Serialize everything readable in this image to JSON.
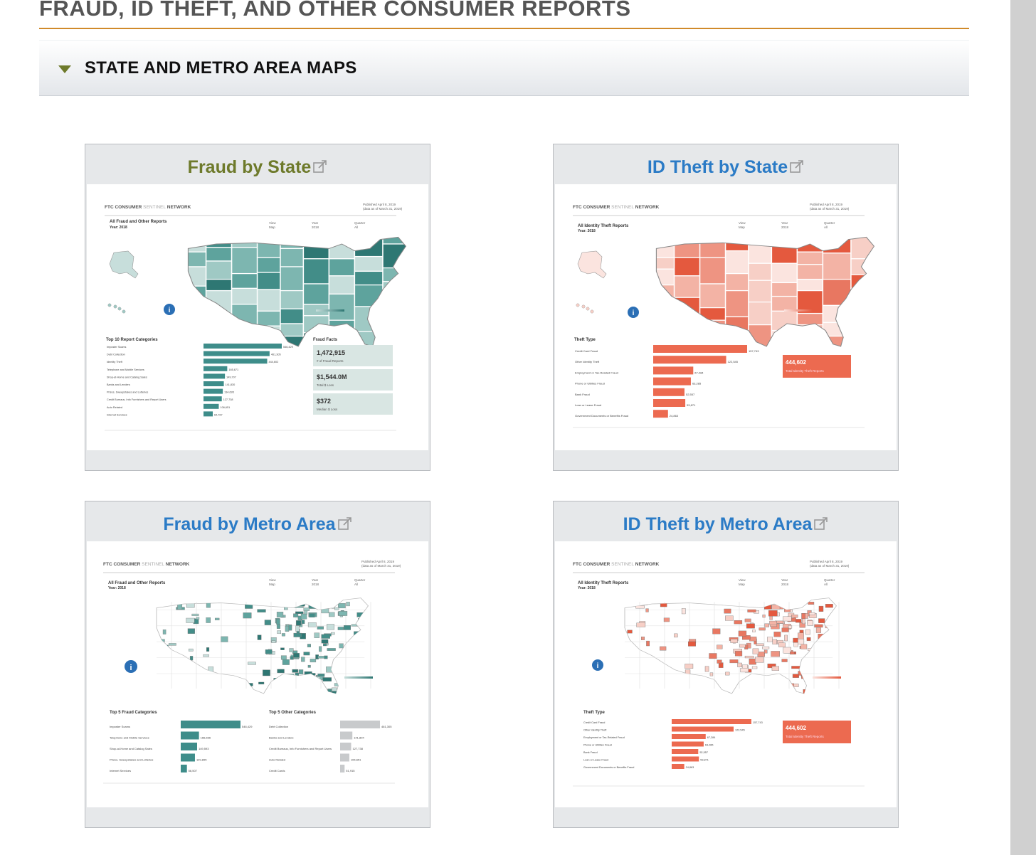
{
  "page": {
    "title": "FRAUD, ID THEFT, AND OTHER CONSUMER REPORTS"
  },
  "accordion": {
    "label": "STATE AND METRO AREA MAPS",
    "expanded": true
  },
  "colors": {
    "heading_gray": "#555555",
    "rule_orange": "#d08a2a",
    "olive_link": "#6e7a2b",
    "blue_link": "#2b7bc6",
    "teal": "#3e8d8a",
    "salmon": "#ec6a50"
  },
  "cards": [
    {
      "title": "Fraud by State",
      "icon": "external-link-icon",
      "thumbnail": {
        "brand_a": "FTC CONSUMER ",
        "brand_b": "SENTINEL",
        "brand_c": " NETWORK",
        "published": "Published April 8, 2019",
        "data_as_of": "(data as of March 31, 2019)",
        "report_title": "All Fraud and Other Reports",
        "year_label": "Year: 2018",
        "view_label": "View",
        "view_value": "Map",
        "year_col": "Year",
        "year_value": "2018",
        "quarter_label": "Quarter",
        "quarter_value": "All",
        "section_title": "Top 10 Report Categories",
        "side_title": "Fraud Facts",
        "categories": [
          "Imposter Scams",
          "Debt Collection",
          "Identity Theft",
          "Telephone and Mobile Services",
          "Shop-at-Home and Catalog Sales",
          "Banks and Lenders",
          "Prizes, Sweepstakes and Lotteries",
          "Credit Bureaus, Info Furnishers and Report Users",
          "Auto Related",
          "Internet Services"
        ],
        "values": [
          546429,
          461305,
          444602,
          165671,
          149707,
          141830,
          134695,
          127738,
          106651,
          64767
        ],
        "value_labels": [
          "546,429",
          "461,305",
          "444,602",
          "165,671",
          "149,707",
          "141,830",
          "134,695",
          "127,738",
          "106,651",
          "64,767"
        ],
        "facts": [
          {
            "value": "1,472,915",
            "label": "# of Fraud Reports"
          },
          {
            "value": "$1,544.0M",
            "label": "Total $ Loss"
          },
          {
            "value": "$372",
            "label": "Median $ Loss"
          }
        ]
      }
    },
    {
      "title": "ID Theft by State",
      "icon": "external-link-icon",
      "thumbnail": {
        "brand_a": "FTC CONSUMER ",
        "brand_b": "SENTINEL",
        "brand_c": " NETWORK",
        "published": "Published April 8, 2019",
        "data_as_of": "(data as of March 31, 2019)",
        "report_title": "All Identity Theft Reports",
        "year_label": "Year: 2018",
        "view_label": "View",
        "view_value": "Map",
        "year_col": "Year",
        "year_value": "2018",
        "quarter_label": "Quarter",
        "quarter_value": "All",
        "section_title": "Theft Type",
        "categories": [
          "Credit Card Fraud",
          "Other Identity Theft",
          "Employment or Tax-Related Fraud",
          "Phone or Utilities Fraud",
          "Bank Fraud",
          "Loan or Lease Fraud",
          "Government Documents or Benefits Fraud"
        ],
        "values": [
          157743,
          122545,
          67284,
          63285,
          52557,
          53871,
          24863
        ],
        "value_labels": [
          "157,743",
          "122,545",
          "67,284",
          "63,285",
          "52,557",
          "53,871",
          "24,863"
        ],
        "total_value": "444,602",
        "total_label": "Total Identity Theft Reports"
      }
    },
    {
      "title": "Fraud by Metro Area",
      "icon": "external-link-icon",
      "thumbnail": {
        "brand_a": "FTC CONSUMER ",
        "brand_b": "SENTINEL",
        "brand_c": " NETWORK",
        "published": "Published April 8, 2019",
        "data_as_of": "(data as of March 31, 2019)",
        "report_title": "All Fraud and Other Reports",
        "year_label": "Year: 2018",
        "view_label": "View",
        "view_value": "Map",
        "year_col": "Year",
        "year_value": "2018",
        "quarter_label": "Quarter",
        "quarter_value": "All",
        "section_title": "Top 5 Fraud Categories",
        "categories": [
          "Imposter Scams",
          "Telephone and Mobile Services",
          "Shop-at-Home and Catalog Sales",
          "Prizes, Sweepstakes and Lotteries",
          "Internet Services"
        ],
        "values": [
          546429,
          166666,
          149593,
          129895,
          56507
        ],
        "value_labels": [
          "546,429",
          "166,666",
          "149,593",
          "129,895",
          "56,507"
        ],
        "section_title_2": "Top 5 Other Categories",
        "categories_2": [
          "Debt Collection",
          "Banks and Lenders",
          "Credit Bureaus, Info Furnishers and Report Users",
          "Auto Related",
          "Credit Cards"
        ],
        "values_2": [
          461305,
          141804,
          127738,
          106651,
          51915
        ],
        "value_labels_2": [
          "461,305",
          "141,804",
          "127,738",
          "106,651",
          "51,915"
        ]
      }
    },
    {
      "title": "ID Theft by Metro Area",
      "icon": "external-link-icon",
      "thumbnail": {
        "brand_a": "FTC CONSUMER ",
        "brand_b": "SENTINEL",
        "brand_c": " NETWORK",
        "published": "Published April 8, 2019",
        "data_as_of": "(data as of March 31, 2019)",
        "report_title": "All Identity Theft Reports",
        "year_label": "Year: 2018",
        "view_label": "View",
        "view_value": "Map",
        "year_col": "Year",
        "year_value": "2018",
        "quarter_label": "Quarter",
        "quarter_value": "All",
        "section_title": "Theft Type",
        "categories": [
          "Credit Card Fraud",
          "Other Identity Theft",
          "Employment or Tax-Related Fraud",
          "Phone or Utilities Fraud",
          "Bank Fraud",
          "Loan or Lease Fraud",
          "Government Documents or Benefits Fraud"
        ],
        "values": [
          157743,
          122545,
          67284,
          63285,
          52557,
          53871,
          24863
        ],
        "value_labels": [
          "157,743",
          "122,545",
          "67,284",
          "63,285",
          "52,557",
          "53,871",
          "24,863"
        ],
        "total_value": "444,602",
        "total_label": "Total Identity Theft Reports"
      }
    }
  ]
}
